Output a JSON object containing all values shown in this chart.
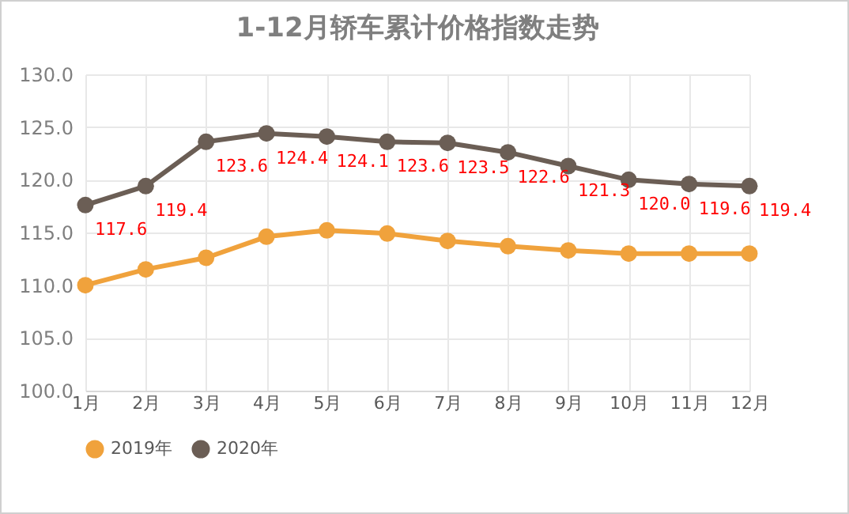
{
  "chart_data": {
    "type": "line",
    "title": "1-12月轿车累计价格指数走势",
    "categories": [
      "1月",
      "2月",
      "3月",
      "4月",
      "5月",
      "6月",
      "7月",
      "8月",
      "9月",
      "10月",
      "11月",
      "12月"
    ],
    "series": [
      {
        "name": "2019年",
        "color": "#f0a23c",
        "values": [
          110.0,
          111.5,
          112.6,
          114.6,
          115.2,
          114.9,
          114.2,
          113.7,
          113.3,
          113.0,
          113.0,
          113.0
        ]
      },
      {
        "name": "2020年",
        "color": "#6b5e55",
        "values": [
          117.6,
          119.4,
          123.6,
          124.4,
          124.1,
          123.6,
          123.5,
          122.6,
          121.3,
          120.0,
          119.6,
          119.4
        ],
        "value_labels": [
          "117.6",
          "119.4",
          "123.6",
          "124.4",
          "124.1",
          "123.6",
          "123.5",
          "122.6",
          "121.3",
          "120.0",
          "119.6",
          "119.4"
        ]
      }
    ],
    "ylim": [
      100,
      130
    ],
    "yticks": [
      {
        "value": 100,
        "label": "100.0"
      },
      {
        "value": 105,
        "label": "105.0"
      },
      {
        "value": 110,
        "label": "110.0"
      },
      {
        "value": 115,
        "label": "115.0"
      },
      {
        "value": 120,
        "label": "120.0"
      },
      {
        "value": 125,
        "label": "125.0"
      },
      {
        "value": 130,
        "label": "130.0"
      }
    ],
    "grid": true,
    "legend": "bottom",
    "marker": "circle",
    "line_style": "solid"
  }
}
